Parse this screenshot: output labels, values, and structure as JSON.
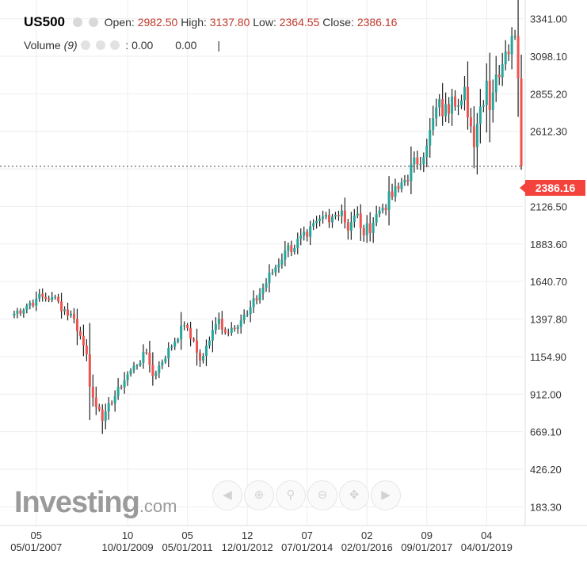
{
  "header": {
    "symbol": "US500",
    "open_label": "Open:",
    "open_value": "2982.50",
    "high_label": "High:",
    "high_value": "3137.80",
    "low_label": "Low:",
    "low_value": "2364.55",
    "close_label": "Close:",
    "close_value": "2386.16"
  },
  "volume": {
    "label": "Volume",
    "period": "(9)",
    "value_1": "0.00",
    "value_2": "0.00",
    "cursor": "|"
  },
  "brand": {
    "name": "Investing",
    "suffix": ".com"
  },
  "current_price_label": "2386.16",
  "colors": {
    "up": "#26a69a",
    "down": "#ef5350",
    "wick": "#222222",
    "grid": "#eeeeee",
    "price_tag": "#f4433c"
  },
  "nav_icons": [
    "arrow-left-icon",
    "zoom-in-icon",
    "zoom-reset-icon",
    "zoom-out-icon",
    "pan-icon",
    "arrow-right-icon"
  ],
  "chart_data": {
    "type": "candlestick",
    "interval": "monthly",
    "ylim": [
      62,
      3462
    ],
    "y_ticks": [
      183.3,
      426.2,
      669.1,
      912.0,
      1154.9,
      1397.8,
      1640.7,
      1883.6,
      2126.5,
      2369.4,
      2612.3,
      2855.2,
      3098.1,
      3341.0
    ],
    "y_tick_labels": [
      "183.30",
      "426.20",
      "669.10",
      "912.00",
      "1154.90",
      "1397.80",
      "1640.70",
      "1883.60",
      "2126.50",
      "2369.40",
      "2612.30",
      "2855.20",
      "3098.10",
      "3341.00"
    ],
    "x_range": [
      "2006-07",
      "2020-05"
    ],
    "x_ticks": [
      {
        "top": "05",
        "bottom": "05/01/2007",
        "month": "2007-05"
      },
      {
        "top": "10",
        "bottom": "10/01/2009",
        "month": "2009-10"
      },
      {
        "top": "05",
        "bottom": "05/01/2011",
        "month": "2011-05"
      },
      {
        "top": "12",
        "bottom": "12/01/2012",
        "month": "2012-12"
      },
      {
        "top": "07",
        "bottom": "07/01/2014",
        "month": "2014-07"
      },
      {
        "top": "02",
        "bottom": "02/01/2016",
        "month": "2016-02"
      },
      {
        "top": "09",
        "bottom": "09/01/2017",
        "month": "2017-09"
      },
      {
        "top": "04",
        "bottom": "04/01/2019",
        "month": "2019-04"
      }
    ],
    "current_price": 2386.16,
    "anchors": [
      [
        "2006-09",
        1420
      ],
      [
        "2007-05",
        1530
      ],
      [
        "2007-10",
        1540
      ],
      [
        "2008-05",
        1400
      ],
      [
        "2008-09",
        1170
      ],
      [
        "2008-10",
        960
      ],
      [
        "2009-02",
        740
      ],
      [
        "2009-03",
        800
      ],
      [
        "2009-10",
        1040
      ],
      [
        "2010-04",
        1180
      ],
      [
        "2010-06",
        1030
      ],
      [
        "2011-04",
        1360
      ],
      [
        "2011-05",
        1340
      ],
      [
        "2011-09",
        1130
      ],
      [
        "2012-03",
        1400
      ],
      [
        "2012-05",
        1310
      ],
      [
        "2012-12",
        1430
      ],
      [
        "2013-12",
        1840
      ],
      [
        "2014-07",
        1930
      ],
      [
        "2014-12",
        2060
      ],
      [
        "2015-06",
        2100
      ],
      [
        "2015-08",
        1970
      ],
      [
        "2015-11",
        2080
      ],
      [
        "2016-01",
        1940
      ],
      [
        "2016-06",
        2100
      ],
      [
        "2016-12",
        2240
      ],
      [
        "2017-09",
        2520
      ],
      [
        "2018-01",
        2820
      ],
      [
        "2018-02",
        2710
      ],
      [
        "2018-09",
        2900
      ],
      [
        "2018-12",
        2510
      ],
      [
        "2019-04",
        2940
      ],
      [
        "2019-05",
        2750
      ],
      [
        "2019-07",
        2980
      ],
      [
        "2019-12",
        3230
      ],
      [
        "2020-01",
        3230
      ],
      [
        "2020-02",
        2954
      ],
      [
        "2020-03",
        2386
      ]
    ]
  }
}
